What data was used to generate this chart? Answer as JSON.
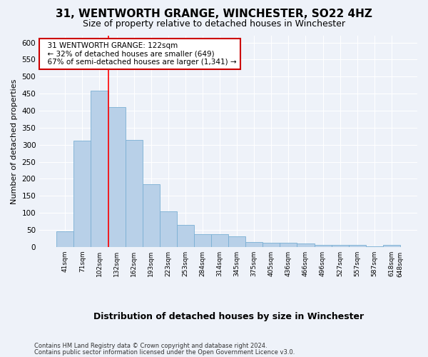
{
  "title": "31, WENTWORTH GRANGE, WINCHESTER, SO22 4HZ",
  "subtitle": "Size of property relative to detached houses in Winchester",
  "xlabel": "Distribution of detached houses by size in Winchester",
  "ylabel": "Number of detached properties",
  "footnote1": "Contains HM Land Registry data © Crown copyright and database right 2024.",
  "footnote2": "Contains public sector information licensed under the Open Government Licence v3.0.",
  "annotation_line1": "31 WENTWORTH GRANGE: 122sqm",
  "annotation_line2": "← 32% of detached houses are smaller (649)",
  "annotation_line3": "67% of semi-detached houses are larger (1,341) →",
  "bar_color": "#b8d0e8",
  "bar_edge_color": "#7aafd4",
  "bar_heights": [
    46,
    311,
    459,
    411,
    313,
    185,
    104,
    65,
    38,
    38,
    30,
    14,
    13,
    13,
    10,
    6,
    5,
    5,
    1,
    5
  ],
  "bin_labels": [
    "41sqm",
    "71sqm",
    "102sqm",
    "132sqm",
    "162sqm",
    "193sqm",
    "223sqm",
    "253sqm",
    "284sqm",
    "314sqm",
    "345sqm",
    "375sqm",
    "405sqm",
    "436sqm",
    "466sqm",
    "496sqm",
    "527sqm",
    "557sqm",
    "587sqm",
    "618sqm",
    "648sqm"
  ],
  "red_line_x": 2.5,
  "ylim": [
    0,
    620
  ],
  "yticks": [
    0,
    50,
    100,
    150,
    200,
    250,
    300,
    350,
    400,
    450,
    500,
    550,
    600
  ],
  "background_color": "#eef2f9",
  "grid_color": "#ffffff",
  "annotation_box_facecolor": "#ffffff",
  "annotation_box_edgecolor": "#cc0000",
  "title_fontsize": 11,
  "subtitle_fontsize": 9
}
